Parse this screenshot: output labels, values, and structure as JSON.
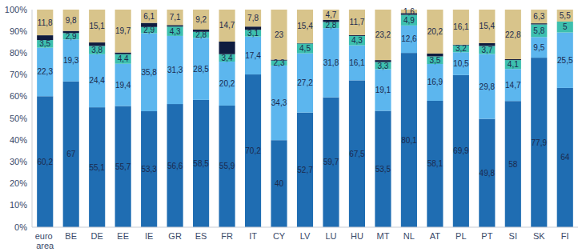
{
  "chart_data": {
    "type": "bar",
    "stacked": true,
    "data_labels": true,
    "grid": false,
    "categories": [
      "euro area",
      "BE",
      "DE",
      "EE",
      "IE",
      "GR",
      "ES",
      "FR",
      "IT",
      "CY",
      "LV",
      "LU",
      "HU",
      "MT",
      "NL",
      "AT",
      "PL",
      "PT",
      "SI",
      "SK",
      "FI"
    ],
    "ylim": [
      0,
      100
    ],
    "yticks": [
      {
        "value": 0,
        "label": "0%"
      },
      {
        "value": 10,
        "label": "10%"
      },
      {
        "value": 20,
        "label": "20%"
      },
      {
        "value": 30,
        "label": "30%"
      },
      {
        "value": 40,
        "label": "40%"
      },
      {
        "value": 50,
        "label": "50%"
      },
      {
        "value": 60,
        "label": "60%"
      },
      {
        "value": 70,
        "label": "70%"
      },
      {
        "value": 80,
        "label": "80%"
      },
      {
        "value": 90,
        "label": "90%"
      },
      {
        "value": 100,
        "label": "100%"
      }
    ],
    "series": [
      {
        "color": "#1f6db2",
        "values": [
          60.2,
          67,
          55.1,
          55.7,
          53.3,
          56.6,
          58.5,
          55.9,
          70.2,
          40,
          52.7,
          59.7,
          67.5,
          53.5,
          80.1,
          58.1,
          69.9,
          49.8,
          58,
          77.9,
          64
        ],
        "value_labels": [
          "60,2",
          "67",
          "55,1",
          "55,7",
          "53,3",
          "56,6",
          "58,5",
          "55,9",
          "70,2",
          "40",
          "52,7",
          "59,7",
          "67,5",
          "53,5",
          "80,1",
          "58,1",
          "69,9",
          "49,8",
          "58",
          "77,9",
          "64"
        ]
      },
      {
        "color": "#5cb6ee",
        "values": [
          22.3,
          19.3,
          24.4,
          19.4,
          35.8,
          31.3,
          28.5,
          20.2,
          17.4,
          34.3,
          27.2,
          31.8,
          16.1,
          19.1,
          12.6,
          16.9,
          10.5,
          29.8,
          14.7,
          9.5,
          25.5
        ],
        "value_labels": [
          "22,3",
          "19,3",
          "24,4",
          "19,4",
          "35,8",
          "31,3",
          "28,5",
          "20,2",
          "17,4",
          "34,3",
          "27,2",
          "31,8",
          "16,1",
          "19,1",
          "12,6",
          "16,9",
          "10,5",
          "29,8",
          "14,7",
          "9,5",
          "25,5"
        ]
      },
      {
        "color": "#3dbfae",
        "values": [
          3.5,
          2.9,
          3.8,
          4.4,
          2.9,
          4.3,
          2.8,
          3.4,
          3.1,
          2.3,
          4.5,
          2.8,
          4.3,
          3.3,
          4.9,
          3.5,
          3.2,
          3.7,
          4.1,
          5.8,
          5
        ],
        "value_labels": [
          "3,5",
          "2,9",
          "3,8",
          "4,4",
          "2,9",
          "4,3",
          "2,8",
          "3,4",
          "3,1",
          "2,3",
          "4,5",
          "2,8",
          "4,3",
          "3,3",
          "4,9",
          "3,5",
          "3,2",
          "3,7",
          "4,1",
          "5,8",
          "5"
        ]
      },
      {
        "color": "#0f1c3f",
        "values": [
          2.2,
          1,
          1.6,
          0.8,
          1.9,
          0.7,
          1,
          5.8,
          1.5,
          0.4,
          0.2,
          1,
          0.4,
          0.9,
          0.8,
          1.3,
          0.3,
          1.3,
          0.4,
          0.5,
          0
        ],
        "value_labels": [
          null,
          null,
          null,
          null,
          null,
          null,
          null,
          null,
          null,
          null,
          null,
          null,
          null,
          null,
          null,
          null,
          null,
          null,
          null,
          null,
          null
        ]
      },
      {
        "color": "#d8c48b",
        "values": [
          11.8,
          9.8,
          15.1,
          19.7,
          6.1,
          7.1,
          9.2,
          14.7,
          7.8,
          23,
          15.4,
          4.7,
          11.7,
          23.2,
          1.6,
          20.2,
          16.1,
          15.4,
          22.8,
          6.3,
          5.5
        ],
        "value_labels": [
          "11,8",
          "9,8",
          "15,1",
          "19,7",
          "6,1",
          "7,1",
          "9,2",
          "14,7",
          "7,8",
          "23",
          "15,4",
          "4,7",
          "11,7",
          "23,2",
          "1,6",
          "20,2",
          "16,1",
          "15,4",
          "22,8",
          "6,3",
          "5,5"
        ]
      }
    ]
  }
}
